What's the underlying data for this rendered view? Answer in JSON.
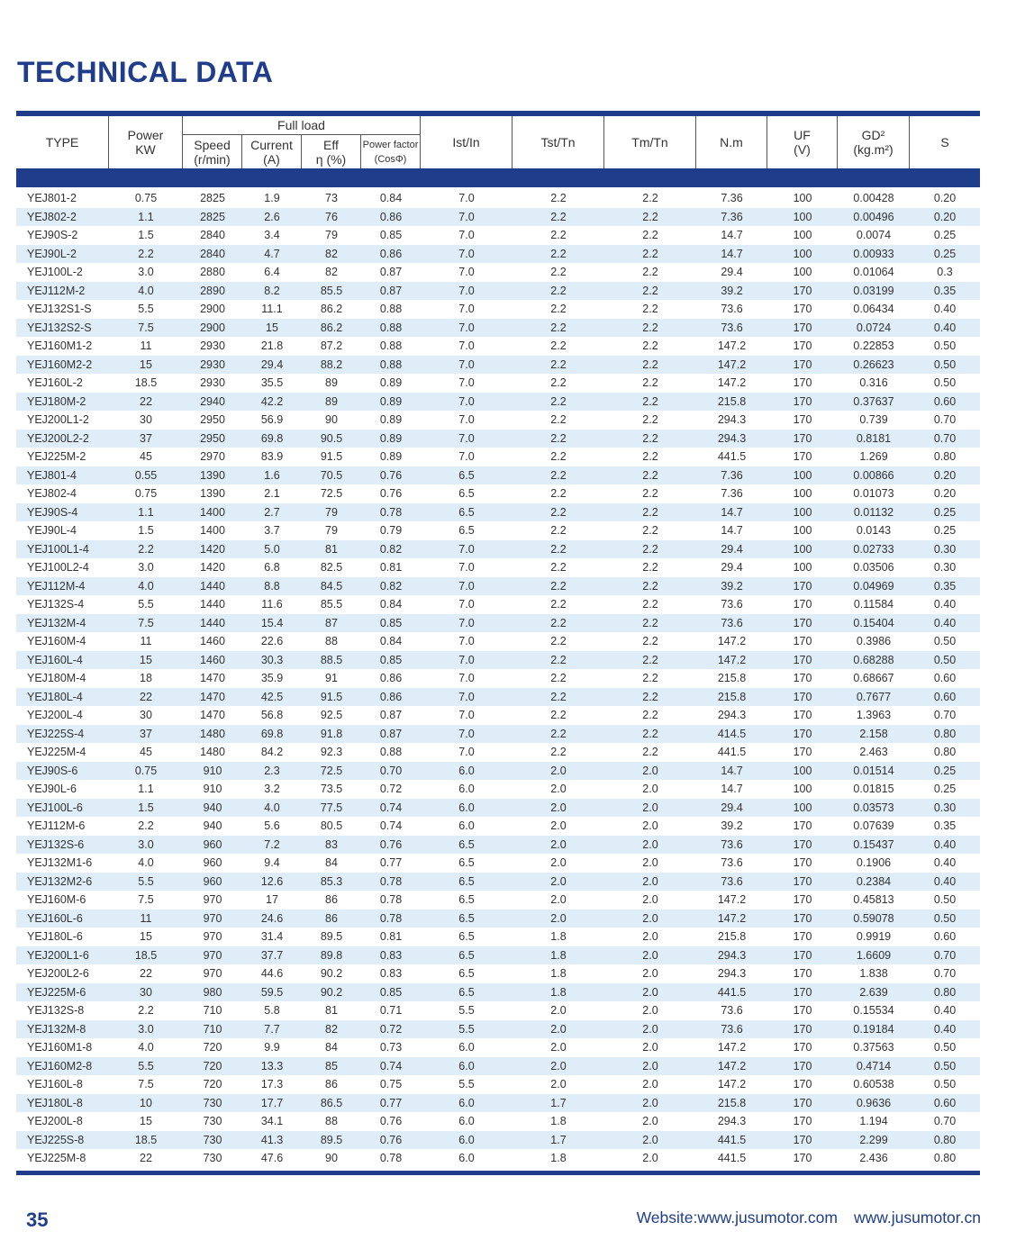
{
  "title": "TECHNICAL DATA",
  "header": {
    "type": "TYPE",
    "power": [
      "Power",
      "KW"
    ],
    "full_load": "Full load",
    "speed": [
      "Speed",
      "(r/min)"
    ],
    "current": [
      "Current",
      "(A)"
    ],
    "eff": [
      "Eff",
      "η (%)"
    ],
    "pf": [
      "Power factor",
      "(CosΦ)"
    ],
    "ist": "Ist/In",
    "tst": "Tst/Tn",
    "tm": "Tm/Tn",
    "nm": "N.m",
    "uf": [
      "UF",
      "(V)"
    ],
    "gd": [
      "GD²",
      "(kg.m²)"
    ],
    "s": "S"
  },
  "rows": [
    [
      "YEJ801-2",
      "0.75",
      "2825",
      "1.9",
      "73",
      "0.84",
      "7.0",
      "2.2",
      "2.2",
      "7.36",
      "100",
      "0.00428",
      "0.20"
    ],
    [
      "YEJ802-2",
      "1.1",
      "2825",
      "2.6",
      "76",
      "0.86",
      "7.0",
      "2.2",
      "2.2",
      "7.36",
      "100",
      "0.00496",
      "0.20"
    ],
    [
      "YEJ90S-2",
      "1.5",
      "2840",
      "3.4",
      "79",
      "0.85",
      "7.0",
      "2.2",
      "2.2",
      "14.7",
      "100",
      "0.0074",
      "0.25"
    ],
    [
      "YEJ90L-2",
      "2.2",
      "2840",
      "4.7",
      "82",
      "0.86",
      "7.0",
      "2.2",
      "2.2",
      "14.7",
      "100",
      "0.00933",
      "0.25"
    ],
    [
      "YEJ100L-2",
      "3.0",
      "2880",
      "6.4",
      "82",
      "0.87",
      "7.0",
      "2.2",
      "2.2",
      "29.4",
      "100",
      "0.01064",
      "0.3"
    ],
    [
      "YEJ112M-2",
      "4.0",
      "2890",
      "8.2",
      "85.5",
      "0.87",
      "7.0",
      "2.2",
      "2.2",
      "39.2",
      "170",
      "0.03199",
      "0.35"
    ],
    [
      "YEJ132S1-S",
      "5.5",
      "2900",
      "11.1",
      "86.2",
      "0.88",
      "7.0",
      "2.2",
      "2.2",
      "73.6",
      "170",
      "0.06434",
      "0.40"
    ],
    [
      "YEJ132S2-S",
      "7.5",
      "2900",
      "15",
      "86.2",
      "0.88",
      "7.0",
      "2.2",
      "2.2",
      "73.6",
      "170",
      "0.0724",
      "0.40"
    ],
    [
      "YEJ160M1-2",
      "11",
      "2930",
      "21.8",
      "87.2",
      "0.88",
      "7.0",
      "2.2",
      "2.2",
      "147.2",
      "170",
      "0.22853",
      "0.50"
    ],
    [
      "YEJ160M2-2",
      "15",
      "2930",
      "29.4",
      "88.2",
      "0.88",
      "7.0",
      "2.2",
      "2.2",
      "147.2",
      "170",
      "0.26623",
      "0.50"
    ],
    [
      "YEJ160L-2",
      "18.5",
      "2930",
      "35.5",
      "89",
      "0.89",
      "7.0",
      "2.2",
      "2.2",
      "147.2",
      "170",
      "0.316",
      "0.50"
    ],
    [
      "YEJ180M-2",
      "22",
      "2940",
      "42.2",
      "89",
      "0.89",
      "7.0",
      "2.2",
      "2.2",
      "215.8",
      "170",
      "0.37637",
      "0.60"
    ],
    [
      "YEJ200L1-2",
      "30",
      "2950",
      "56.9",
      "90",
      "0.89",
      "7.0",
      "2.2",
      "2.2",
      "294.3",
      "170",
      "0.739",
      "0.70"
    ],
    [
      "YEJ200L2-2",
      "37",
      "2950",
      "69.8",
      "90.5",
      "0.89",
      "7.0",
      "2.2",
      "2.2",
      "294.3",
      "170",
      "0.8181",
      "0.70"
    ],
    [
      "YEJ225M-2",
      "45",
      "2970",
      "83.9",
      "91.5",
      "0.89",
      "7.0",
      "2.2",
      "2.2",
      "441.5",
      "170",
      "1.269",
      "0.80"
    ],
    [
      "YEJ801-4",
      "0.55",
      "1390",
      "1.6",
      "70.5",
      "0.76",
      "6.5",
      "2.2",
      "2.2",
      "7.36",
      "100",
      "0.00866",
      "0.20"
    ],
    [
      "YEJ802-4",
      "0.75",
      "1390",
      "2.1",
      "72.5",
      "0.76",
      "6.5",
      "2.2",
      "2.2",
      "7.36",
      "100",
      "0.01073",
      "0.20"
    ],
    [
      "YEJ90S-4",
      "1.1",
      "1400",
      "2.7",
      "79",
      "0.78",
      "6.5",
      "2.2",
      "2.2",
      "14.7",
      "100",
      "0.01132",
      "0.25"
    ],
    [
      "YEJ90L-4",
      "1.5",
      "1400",
      "3.7",
      "79",
      "0.79",
      "6.5",
      "2.2",
      "2.2",
      "14.7",
      "100",
      "0.0143",
      "0.25"
    ],
    [
      "YEJ100L1-4",
      "2.2",
      "1420",
      "5.0",
      "81",
      "0.82",
      "7.0",
      "2.2",
      "2.2",
      "29.4",
      "100",
      "0.02733",
      "0.30"
    ],
    [
      "YEJ100L2-4",
      "3.0",
      "1420",
      "6.8",
      "82.5",
      "0.81",
      "7.0",
      "2.2",
      "2.2",
      "29.4",
      "100",
      "0.03506",
      "0.30"
    ],
    [
      "YEJ112M-4",
      "4.0",
      "1440",
      "8.8",
      "84.5",
      "0.82",
      "7.0",
      "2.2",
      "2.2",
      "39.2",
      "170",
      "0.04969",
      "0.35"
    ],
    [
      "YEJ132S-4",
      "5.5",
      "1440",
      "11.6",
      "85.5",
      "0.84",
      "7.0",
      "2.2",
      "2.2",
      "73.6",
      "170",
      "0.11584",
      "0.40"
    ],
    [
      "YEJ132M-4",
      "7.5",
      "1440",
      "15.4",
      "87",
      "0.85",
      "7.0",
      "2.2",
      "2.2",
      "73.6",
      "170",
      "0.15404",
      "0.40"
    ],
    [
      "YEJ160M-4",
      "11",
      "1460",
      "22.6",
      "88",
      "0.84",
      "7.0",
      "2.2",
      "2.2",
      "147.2",
      "170",
      "0.3986",
      "0.50"
    ],
    [
      "YEJ160L-4",
      "15",
      "1460",
      "30.3",
      "88.5",
      "0.85",
      "7.0",
      "2.2",
      "2.2",
      "147.2",
      "170",
      "0.68288",
      "0.50"
    ],
    [
      "YEJ180M-4",
      "18",
      "1470",
      "35.9",
      "91",
      "0.86",
      "7.0",
      "2.2",
      "2.2",
      "215.8",
      "170",
      "0.68667",
      "0.60"
    ],
    [
      "YEJ180L-4",
      "22",
      "1470",
      "42.5",
      "91.5",
      "0.86",
      "7.0",
      "2.2",
      "2.2",
      "215.8",
      "170",
      "0.7677",
      "0.60"
    ],
    [
      "YEJ200L-4",
      "30",
      "1470",
      "56.8",
      "92.5",
      "0.87",
      "7.0",
      "2.2",
      "2.2",
      "294.3",
      "170",
      "1.3963",
      "0.70"
    ],
    [
      "YEJ225S-4",
      "37",
      "1480",
      "69.8",
      "91.8",
      "0.87",
      "7.0",
      "2.2",
      "2.2",
      "414.5",
      "170",
      "2.158",
      "0.80"
    ],
    [
      "YEJ225M-4",
      "45",
      "1480",
      "84.2",
      "92.3",
      "0.88",
      "7.0",
      "2.2",
      "2.2",
      "441.5",
      "170",
      "2.463",
      "0.80"
    ],
    [
      "YEJ90S-6",
      "0.75",
      "910",
      "2.3",
      "72.5",
      "0.70",
      "6.0",
      "2.0",
      "2.0",
      "14.7",
      "100",
      "0.01514",
      "0.25"
    ],
    [
      "YEJ90L-6",
      "1.1",
      "910",
      "3.2",
      "73.5",
      "0.72",
      "6.0",
      "2.0",
      "2.0",
      "14.7",
      "100",
      "0.01815",
      "0.25"
    ],
    [
      "YEJ100L-6",
      "1.5",
      "940",
      "4.0",
      "77.5",
      "0.74",
      "6.0",
      "2.0",
      "2.0",
      "29.4",
      "100",
      "0.03573",
      "0.30"
    ],
    [
      "YEJ112M-6",
      "2.2",
      "940",
      "5.6",
      "80.5",
      "0.74",
      "6.0",
      "2.0",
      "2.0",
      "39.2",
      "170",
      "0.07639",
      "0.35"
    ],
    [
      "YEJ132S-6",
      "3.0",
      "960",
      "7.2",
      "83",
      "0.76",
      "6.5",
      "2.0",
      "2.0",
      "73.6",
      "170",
      "0.15437",
      "0.40"
    ],
    [
      "YEJ132M1-6",
      "4.0",
      "960",
      "9.4",
      "84",
      "0.77",
      "6.5",
      "2.0",
      "2.0",
      "73.6",
      "170",
      "0.1906",
      "0.40"
    ],
    [
      "YEJ132M2-6",
      "5.5",
      "960",
      "12.6",
      "85.3",
      "0.78",
      "6.5",
      "2.0",
      "2.0",
      "73.6",
      "170",
      "0.2384",
      "0.40"
    ],
    [
      "YEJ160M-6",
      "7.5",
      "970",
      "17",
      "86",
      "0.78",
      "6.5",
      "2.0",
      "2.0",
      "147.2",
      "170",
      "0.45813",
      "0.50"
    ],
    [
      "YEJ160L-6",
      "11",
      "970",
      "24.6",
      "86",
      "0.78",
      "6.5",
      "2.0",
      "2.0",
      "147.2",
      "170",
      "0.59078",
      "0.50"
    ],
    [
      "YEJ180L-6",
      "15",
      "970",
      "31.4",
      "89.5",
      "0.81",
      "6.5",
      "1.8",
      "2.0",
      "215.8",
      "170",
      "0.9919",
      "0.60"
    ],
    [
      "YEJ200L1-6",
      "18.5",
      "970",
      "37.7",
      "89.8",
      "0.83",
      "6.5",
      "1.8",
      "2.0",
      "294.3",
      "170",
      "1.6609",
      "0.70"
    ],
    [
      "YEJ200L2-6",
      "22",
      "970",
      "44.6",
      "90.2",
      "0.83",
      "6.5",
      "1.8",
      "2.0",
      "294.3",
      "170",
      "1.838",
      "0.70"
    ],
    [
      "YEJ225M-6",
      "30",
      "980",
      "59.5",
      "90.2",
      "0.85",
      "6.5",
      "1.8",
      "2.0",
      "441.5",
      "170",
      "2.639",
      "0.80"
    ],
    [
      "YEJ132S-8",
      "2.2",
      "710",
      "5.8",
      "81",
      "0.71",
      "5.5",
      "2.0",
      "2.0",
      "73.6",
      "170",
      "0.15534",
      "0.40"
    ],
    [
      "YEJ132M-8",
      "3.0",
      "710",
      "7.7",
      "82",
      "0.72",
      "5.5",
      "2.0",
      "2.0",
      "73.6",
      "170",
      "0.19184",
      "0.40"
    ],
    [
      "YEJ160M1-8",
      "4.0",
      "720",
      "9.9",
      "84",
      "0.73",
      "6.0",
      "2.0",
      "2.0",
      "147.2",
      "170",
      "0.37563",
      "0.50"
    ],
    [
      "YEJ160M2-8",
      "5.5",
      "720",
      "13.3",
      "85",
      "0.74",
      "6.0",
      "2.0",
      "2.0",
      "147.2",
      "170",
      "0.4714",
      "0.50"
    ],
    [
      "YEJ160L-8",
      "7.5",
      "720",
      "17.3",
      "86",
      "0.75",
      "5.5",
      "2.0",
      "2.0",
      "147.2",
      "170",
      "0.60538",
      "0.50"
    ],
    [
      "YEJ180L-8",
      "10",
      "730",
      "17.7",
      "86.5",
      "0.77",
      "6.0",
      "1.7",
      "2.0",
      "215.8",
      "170",
      "0.9636",
      "0.60"
    ],
    [
      "YEJ200L-8",
      "15",
      "730",
      "34.1",
      "88",
      "0.76",
      "6.0",
      "1.8",
      "2.0",
      "294.3",
      "170",
      "1.194",
      "0.70"
    ],
    [
      "YEJ225S-8",
      "18.5",
      "730",
      "41.3",
      "89.5",
      "0.76",
      "6.0",
      "1.7",
      "2.0",
      "441.5",
      "170",
      "2.299",
      "0.80"
    ],
    [
      "YEJ225M-8",
      "22",
      "730",
      "47.6",
      "90",
      "0.78",
      "6.0",
      "1.8",
      "2.0",
      "441.5",
      "170",
      "2.436",
      "0.80"
    ]
  ],
  "footer": {
    "page_number": "35",
    "website1": "Website:www.jusumotor.com",
    "website2": "www.jusumotor.cn"
  },
  "colors": {
    "brand": "#1f3d8a",
    "row_alt": "#deedf8"
  }
}
